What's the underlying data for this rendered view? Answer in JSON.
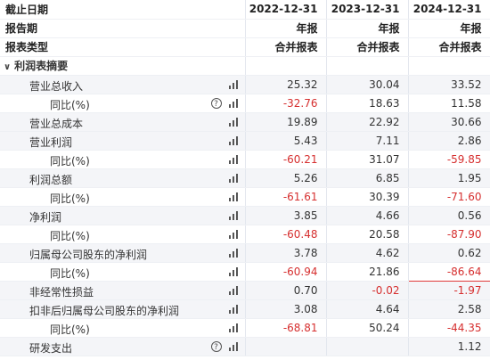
{
  "header": {
    "rows": [
      {
        "label": "截止日期",
        "values": [
          "2022-12-31",
          "2023-12-31",
          "2024-12-31"
        ]
      },
      {
        "label": "报告期",
        "values": [
          "年报",
          "年报",
          "年报"
        ]
      },
      {
        "label": "报表类型",
        "values": [
          "合并报表",
          "合并报表",
          "合并报表"
        ]
      }
    ]
  },
  "section": {
    "caret": "∨",
    "title": "利润表摘要"
  },
  "rows": [
    {
      "label": "营业总收入",
      "indent": false,
      "help": false,
      "values": [
        "25.32",
        "30.04",
        "33.52"
      ]
    },
    {
      "label": "同比(%)",
      "indent": true,
      "help": true,
      "values": [
        "-32.76",
        "18.63",
        "11.58"
      ]
    },
    {
      "label": "营业总成本",
      "indent": false,
      "help": false,
      "values": [
        "19.89",
        "22.92",
        "30.66"
      ]
    },
    {
      "label": "营业利润",
      "indent": false,
      "help": false,
      "values": [
        "5.43",
        "7.11",
        "2.86"
      ]
    },
    {
      "label": "同比(%)",
      "indent": true,
      "help": false,
      "values": [
        "-60.21",
        "31.07",
        "-59.85"
      ]
    },
    {
      "label": "利润总额",
      "indent": false,
      "help": false,
      "values": [
        "5.26",
        "6.85",
        "1.95"
      ]
    },
    {
      "label": "同比(%)",
      "indent": true,
      "help": false,
      "values": [
        "-61.61",
        "30.39",
        "-71.60"
      ]
    },
    {
      "label": "净利润",
      "indent": false,
      "help": false,
      "values": [
        "3.85",
        "4.66",
        "0.56"
      ]
    },
    {
      "label": "同比(%)",
      "indent": true,
      "help": false,
      "values": [
        "-60.48",
        "20.58",
        "-87.90"
      ]
    },
    {
      "label": "归属母公司股东的净利润",
      "indent": false,
      "help": false,
      "values": [
        "3.78",
        "4.62",
        "0.62"
      ]
    },
    {
      "label": "同比(%)",
      "indent": true,
      "help": false,
      "values": [
        "-60.94",
        "21.86",
        "-86.64"
      ],
      "highlight": 2
    },
    {
      "label": "非经常性损益",
      "indent": false,
      "help": false,
      "values": [
        "0.70",
        "-0.02",
        "-1.97"
      ]
    },
    {
      "label": "扣非后归属母公司股东的净利润",
      "indent": false,
      "help": false,
      "values": [
        "3.08",
        "4.64",
        "2.58"
      ]
    },
    {
      "label": "同比(%)",
      "indent": true,
      "help": false,
      "values": [
        "-68.81",
        "50.24",
        "-44.35"
      ]
    },
    {
      "label": "研发支出",
      "indent": false,
      "help": true,
      "values": [
        "",
        "",
        "1.12"
      ]
    }
  ],
  "icons": {
    "help": "question-circle-icon",
    "chart": "bar-chart-icon"
  },
  "colors": {
    "negative": "#d62f2f",
    "highlight_border": "#e03a3a",
    "row_shade": "#f4f5f8"
  }
}
